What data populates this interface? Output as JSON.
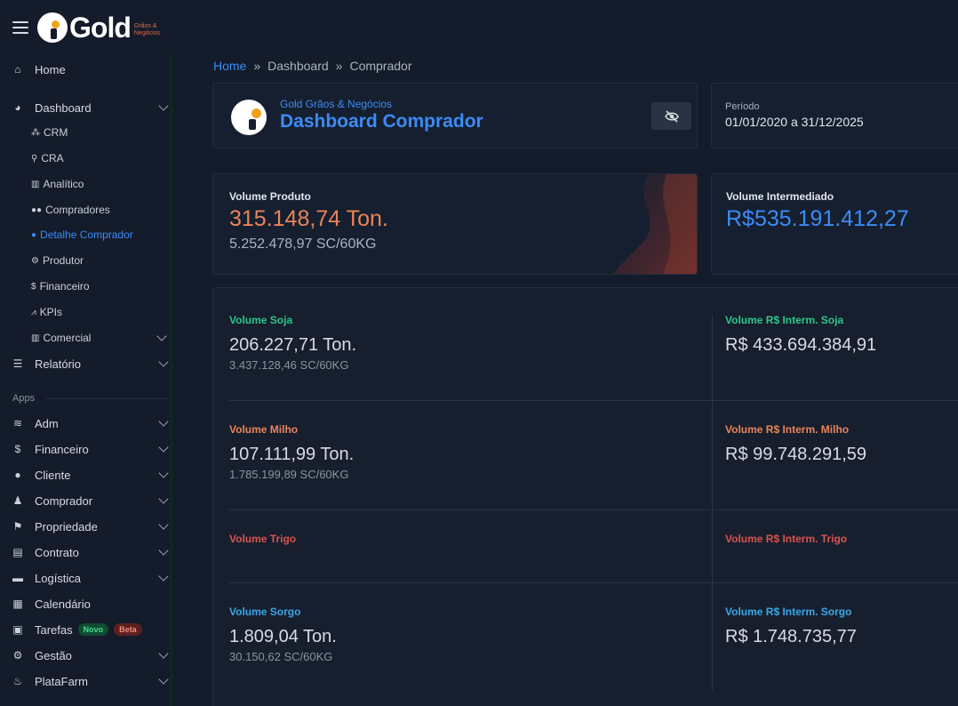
{
  "brand": {
    "logo_text": "Gold",
    "logo_sub": "Grãos & Negócios"
  },
  "sidebar": {
    "items": [
      {
        "label": "Home",
        "icon": "home-icon"
      },
      {
        "label": "Dashboard",
        "icon": "pie-chart-icon"
      },
      {
        "label": "Relatório",
        "icon": "list-icon"
      }
    ],
    "dashboard_sub": [
      {
        "label": "CRM",
        "icon": "network-icon"
      },
      {
        "label": "CRA",
        "icon": "key-icon"
      },
      {
        "label": "Analítico",
        "icon": "bar-chart-icon"
      },
      {
        "label": "Compradores",
        "icon": "users-icon"
      },
      {
        "label": "Detalhe Comprador",
        "icon": "user-icon"
      },
      {
        "label": "Produtor",
        "icon": "tractor-icon"
      },
      {
        "label": "Financeiro",
        "icon": "dollar-icon"
      },
      {
        "label": "KPIs",
        "icon": "line-chart-icon"
      },
      {
        "label": "Comercial",
        "icon": "bar-chart-icon"
      }
    ],
    "apps_label": "Apps",
    "apps": [
      {
        "label": "Adm",
        "icon": "layers-icon"
      },
      {
        "label": "Financeiro",
        "icon": "dollar-icon"
      },
      {
        "label": "Cliente",
        "icon": "user-icon"
      },
      {
        "label": "Comprador",
        "icon": "user-tie-icon"
      },
      {
        "label": "Propriedade",
        "icon": "signpost-icon"
      },
      {
        "label": "Contrato",
        "icon": "file-icon"
      },
      {
        "label": "Logística",
        "icon": "truck-icon"
      },
      {
        "label": "Calendário",
        "icon": "calendar-icon"
      },
      {
        "label": "Tarefas",
        "icon": "board-icon"
      },
      {
        "label": "Gestão",
        "icon": "gears-icon"
      },
      {
        "label": "PlataFarm",
        "icon": "flame-icon"
      }
    ],
    "badge_novo": "Novo",
    "badge_beta": "Beta"
  },
  "breadcrumb": {
    "home": "Home",
    "dashboard": "Dashboard",
    "current": "Comprador",
    "separator": "»"
  },
  "header": {
    "subtitle": "Gold Grãos & Negócios",
    "title": "Dashboard Comprador"
  },
  "period": {
    "label": "Período",
    "value": "01/01/2020 a 31/12/2025"
  },
  "volume_produto": {
    "label": "Volume Produto",
    "value": "315.148,74 Ton.",
    "secondary": "5.252.478,97 SC/60KG"
  },
  "volume_intermediado": {
    "label": "Volume Intermediado",
    "value": "R$535.191.412,27"
  },
  "grid": {
    "soja": {
      "label": "Volume Soja",
      "value": "206.227,71 Ton.",
      "sub": "3.437.128,46 SC/60KG",
      "r_label": "Volume R$ Interm. Soja",
      "r_value": "R$ 433.694.384,91"
    },
    "milho": {
      "label": "Volume Milho",
      "value": "107.111,99 Ton.",
      "sub": "1.785.199,89 SC/60KG",
      "r_label": "Volume R$ Interm. Milho",
      "r_value": "R$ 99.748.291,59"
    },
    "trigo": {
      "label": "Volume Trigo",
      "r_label": "Volume R$ Interm. Trigo"
    },
    "sorgo": {
      "label": "Volume Sorgo",
      "value": "1.809,04 Ton.",
      "sub": "30.150,62 SC/60KG",
      "r_label": "Volume R$ Interm. Sorgo",
      "r_value": "R$ 1.748.735,77"
    }
  },
  "colors": {
    "accent_blue": "#3b8cf5",
    "orange": "#e8845a",
    "green": "#2fc48a",
    "red": "#d9534f"
  }
}
